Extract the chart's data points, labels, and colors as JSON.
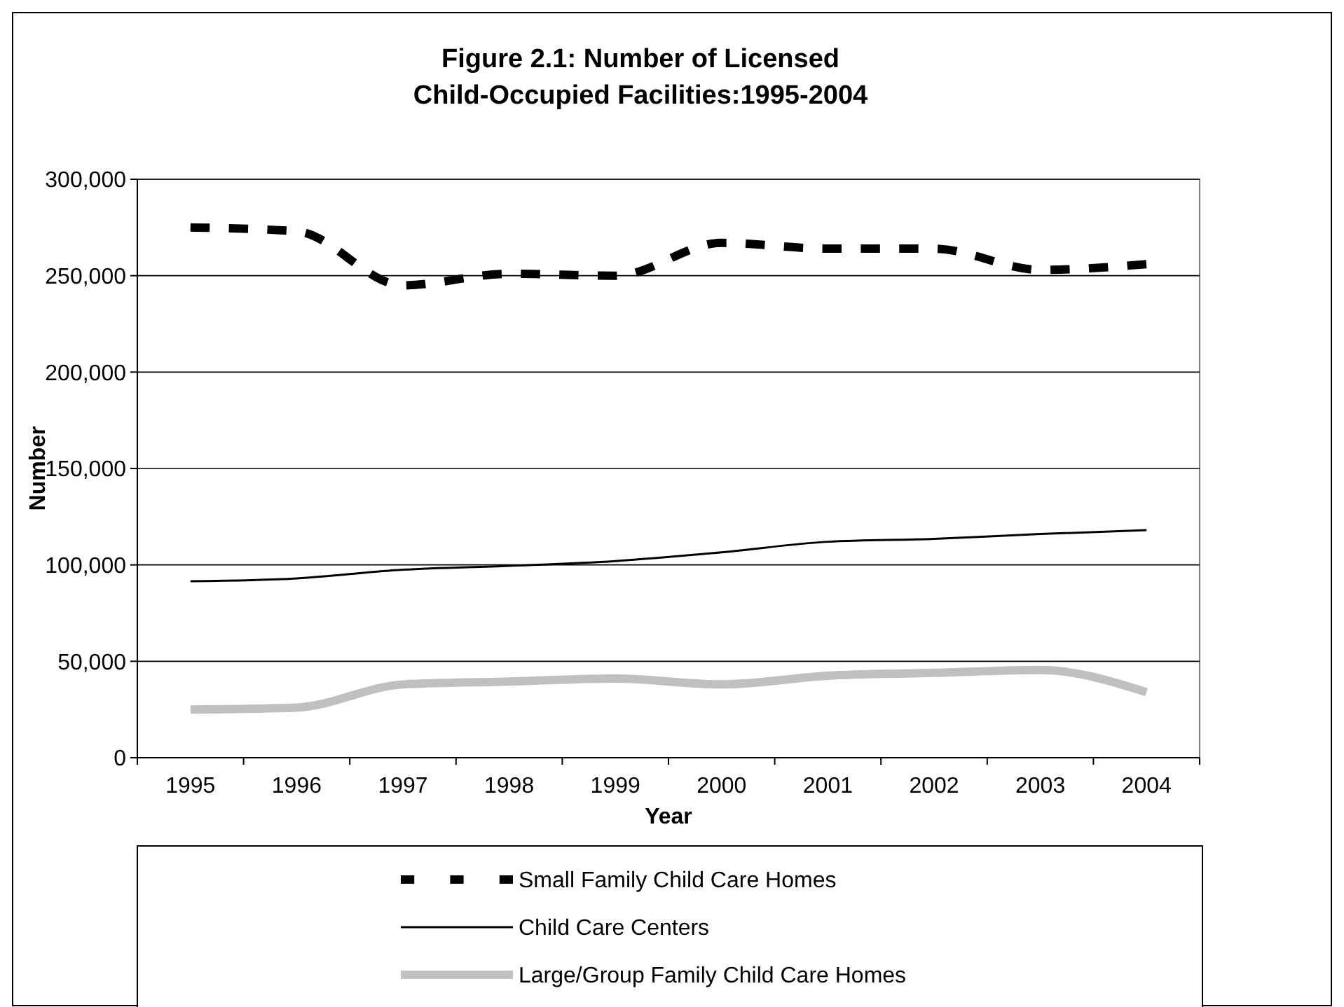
{
  "chart_data": {
    "type": "line",
    "title": "Figure 2.1: Number of Licensed Child-Occupied Facilities:1995-2004",
    "xlabel": "Year",
    "ylabel": "Number",
    "categories": [
      "1995",
      "1996",
      "1997",
      "1998",
      "1999",
      "2000",
      "2001",
      "2002",
      "2003",
      "2004"
    ],
    "ylim": [
      0,
      300000
    ],
    "yticks": [
      {
        "value": 0,
        "label": "0"
      },
      {
        "value": 50000,
        "label": "50,000"
      },
      {
        "value": 100000,
        "label": "100,000"
      },
      {
        "value": 150000,
        "label": "150,000"
      },
      {
        "value": 200000,
        "label": "200,000"
      },
      {
        "value": 250000,
        "label": "250,000"
      },
      {
        "value": 300000,
        "label": "300,000"
      }
    ],
    "grid": "y",
    "legend": "bottom",
    "series": [
      {
        "name": "Small Family Child Care Homes",
        "color": "#000000",
        "line_style": "dashed",
        "values": [
          275000,
          273000,
          245000,
          251000,
          250000,
          267000,
          264000,
          264000,
          253000,
          256000
        ]
      },
      {
        "name": "Child Care Centers",
        "color": "#000000",
        "line_style": "solid",
        "values": [
          91500,
          93000,
          97500,
          99500,
          102000,
          106500,
          112000,
          113500,
          116000,
          118000
        ]
      },
      {
        "name": "Large/Group Family Child Care Homes",
        "color": "#c0c0c0",
        "line_style": "solid",
        "values": [
          25000,
          26000,
          38000,
          39500,
          41000,
          38000,
          42500,
          44000,
          45500,
          34000
        ]
      }
    ]
  }
}
